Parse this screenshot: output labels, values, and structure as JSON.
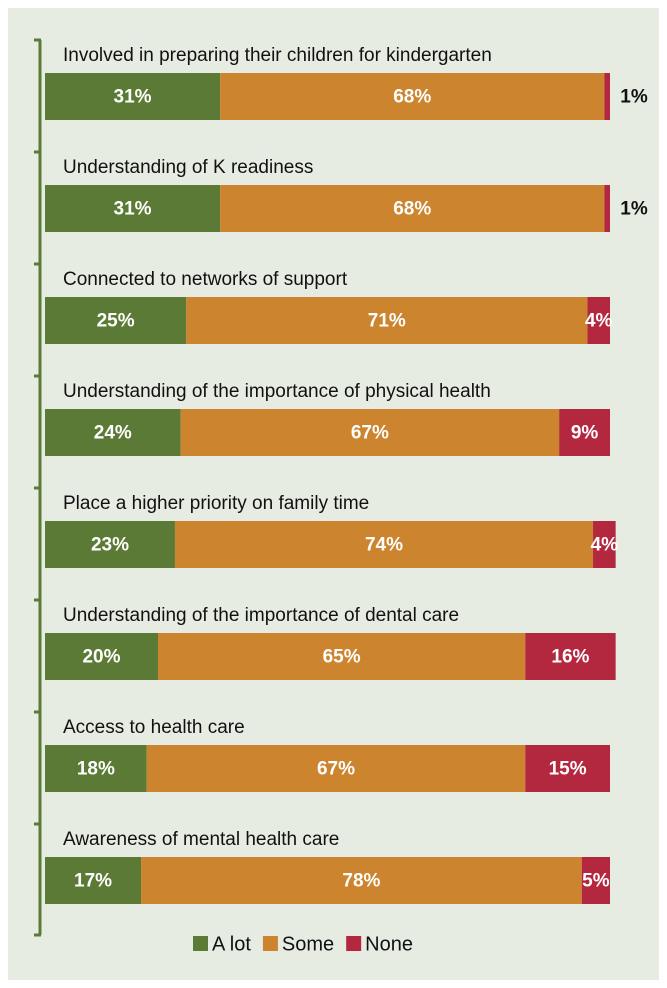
{
  "chart_data": {
    "type": "stacked-bar-horizontal",
    "categories": [
      "Involved in preparing their children for kindergarten",
      "Understanding of K readiness",
      "Connected to networks of support",
      "Understanding of the importance of physical health",
      "Place a higher priority on family time",
      "Understanding of the importance of dental care",
      "Access to health care",
      "Awareness of mental health care"
    ],
    "series": [
      {
        "name": "A lot",
        "color": "#5b7a35",
        "values": [
          31,
          31,
          25,
          24,
          23,
          20,
          18,
          17
        ],
        "value_labels": [
          "31%",
          "31%",
          "25%",
          "24%",
          "23%",
          "20%",
          "18%",
          "17%"
        ]
      },
      {
        "name": "Some",
        "color": "#cc852e",
        "values": [
          68,
          68,
          71,
          67,
          74,
          65,
          67,
          78
        ],
        "value_labels": [
          "68%",
          "68%",
          "71%",
          "67%",
          "74%",
          "65%",
          "67%",
          "78%"
        ]
      },
      {
        "name": "None",
        "color": "#b3283f",
        "values": [
          1,
          1,
          4,
          9,
          4,
          16,
          15,
          5
        ],
        "value_labels": [
          "1%",
          "1%",
          "4%",
          "9%",
          "4%",
          "16%",
          "15%",
          "5%"
        ]
      }
    ],
    "xlim": [
      0,
      100
    ],
    "legend": "bottom"
  }
}
